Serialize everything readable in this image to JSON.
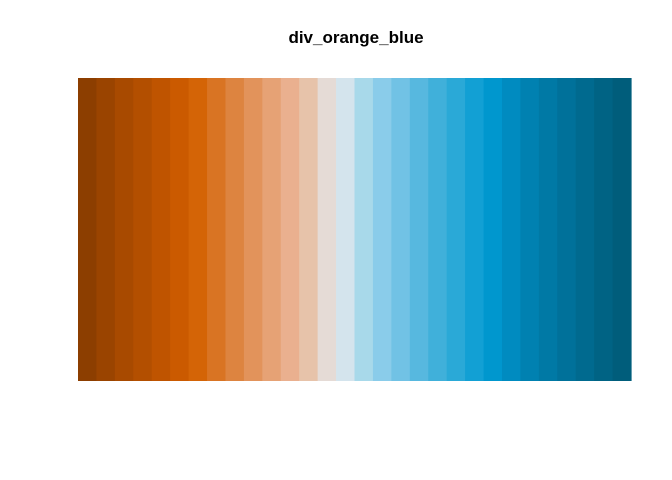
{
  "chart_data": {
    "type": "bar",
    "title": "div_orange_blue",
    "n_colors": 30,
    "colors": [
      "#8c3e00",
      "#9a4400",
      "#a84a00",
      "#b34f00",
      "#bf5400",
      "#cb5a00",
      "#d46406",
      "#d97423",
      "#dd8440",
      "#e2935b",
      "#e6a275",
      "#eab08f",
      "#e7c3aa",
      "#e5dbd6",
      "#d4e4ed",
      "#a8d9ea",
      "#8accea",
      "#71c2e5",
      "#57b8df",
      "#40b0da",
      "#2aa9d7",
      "#12a0d4",
      "#0097ce",
      "#008bc0",
      "#0081b1",
      "#0079a5",
      "#00719a",
      "#006a8f",
      "#006384",
      "#005d7b"
    ]
  }
}
